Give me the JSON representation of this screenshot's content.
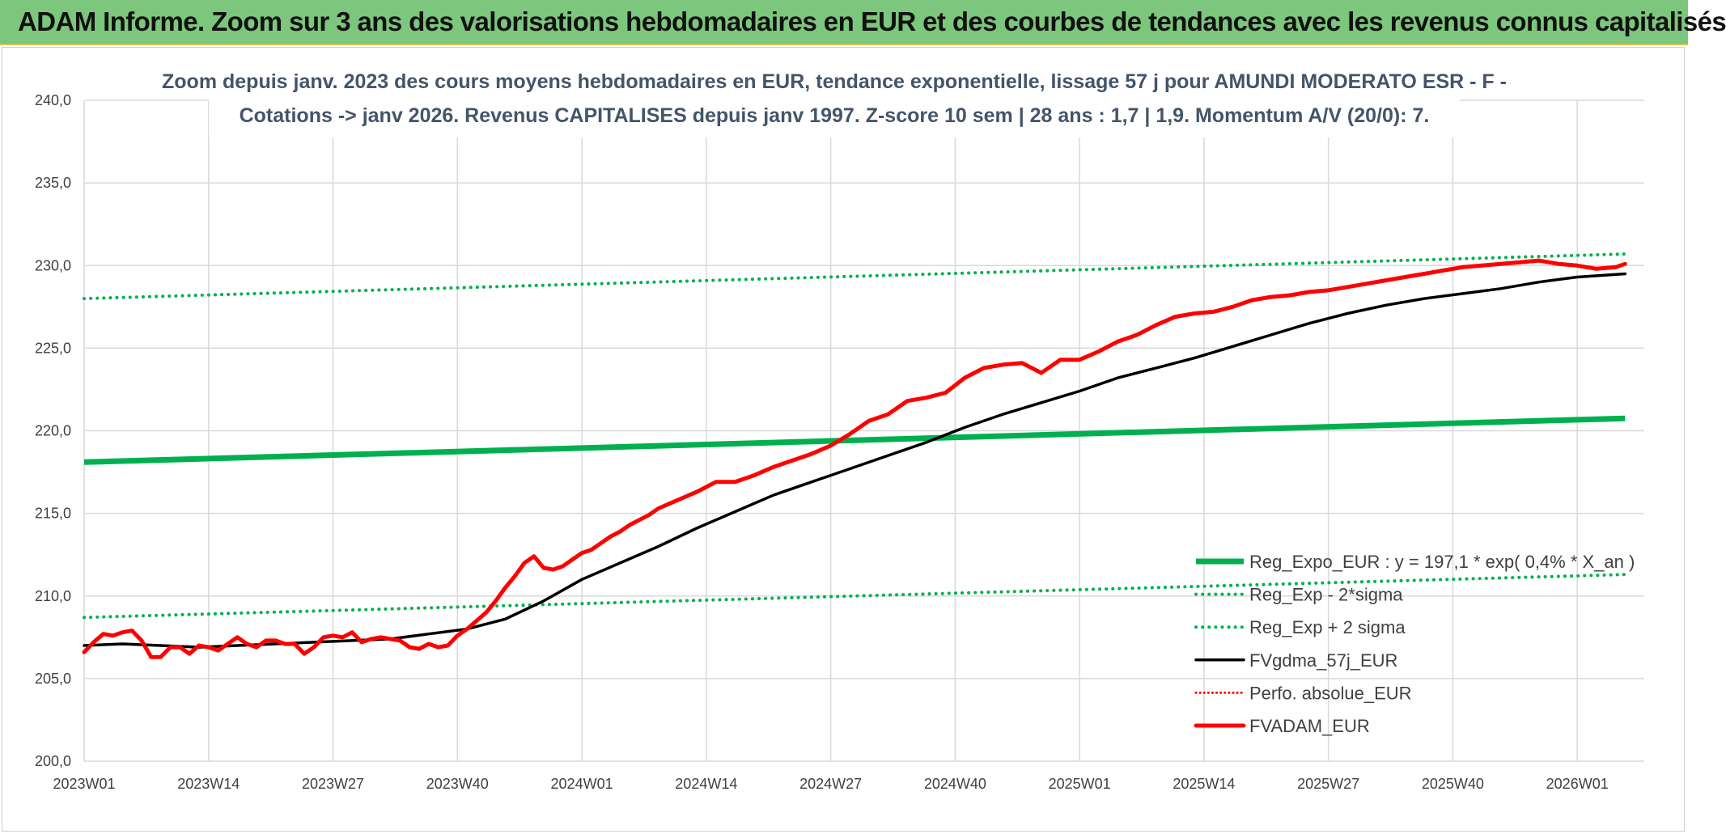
{
  "header": {
    "title": "ADAM Informe. Zoom sur 3 ans des valorisations hebdomadaires en EUR et des courbes de tendances avec les revenus connus capitalisés"
  },
  "colors": {
    "banner": "#7dc67d",
    "green": "#00b050",
    "black": "#000000",
    "red": "#ff0000",
    "grid": "#d9d9d9"
  },
  "chart_data": {
    "type": "line",
    "title_lines": [
      "Zoom depuis janv. 2023 des cours moyens hebdomadaires en EUR, tendance exponentielle, lissage 57 j pour AMUNDI MODERATO ESR - F -",
      "Cotations -> janv 2026. Revenus CAPITALISES depuis janv 1997. Z-score 10 sem | 28 ans : 1,7 | 1,9. Momentum A/V (20/0): 7."
    ],
    "x_tick_labels": [
      "2023W01",
      "2023W14",
      "2023W27",
      "2023W40",
      "2024W01",
      "2024W14",
      "2024W27",
      "2024W40",
      "2025W01",
      "2025W14",
      "2025W27",
      "2025W40",
      "2026W01"
    ],
    "y_tick_labels": [
      "240,0",
      "235,0",
      "230,0",
      "225,0",
      "220,0",
      "215,0",
      "210,0",
      "205,0",
      "200,0"
    ],
    "ylim": [
      200,
      240
    ],
    "x_unit": "week index from 2023W01",
    "xlim": [
      0,
      161
    ],
    "series": [
      {
        "name": "Reg_Expo_EUR : y = 197,1 * exp( 0,4% *  X_an )",
        "style": "solid-green",
        "x": [
          0,
          161
        ],
        "values": [
          218.1,
          220.75
        ]
      },
      {
        "name": "Reg_Exp - 2*sigma",
        "style": "dotted-green",
        "x": [
          0,
          161
        ],
        "values": [
          208.7,
          211.3
        ]
      },
      {
        "name": "Reg_Exp + 2 sigma",
        "style": "dotted-green",
        "x": [
          0,
          161
        ],
        "values": [
          228.0,
          230.7
        ]
      },
      {
        "name": "FVgdma_57j_EUR",
        "style": "solid-black",
        "x": [
          0,
          4,
          8,
          12,
          16,
          20,
          24,
          28,
          32,
          36,
          40,
          44,
          48,
          52,
          56,
          60,
          64,
          68,
          72,
          76,
          80,
          84,
          88,
          92,
          96,
          100,
          104,
          108,
          112,
          116,
          120,
          124,
          128,
          132,
          136,
          140,
          144,
          148,
          152,
          156,
          161
        ],
        "values": [
          207.0,
          207.1,
          207.0,
          206.9,
          207.0,
          207.1,
          207.2,
          207.3,
          207.4,
          207.7,
          208.0,
          208.6,
          209.7,
          211.0,
          212.0,
          213.0,
          214.1,
          215.1,
          216.1,
          216.9,
          217.7,
          218.5,
          219.3,
          220.2,
          221.0,
          221.7,
          222.4,
          223.2,
          223.8,
          224.4,
          225.1,
          225.8,
          226.5,
          227.1,
          227.6,
          228.0,
          228.3,
          228.6,
          229.0,
          229.3,
          229.5
        ]
      },
      {
        "name": "Perfo. absolue_EUR",
        "style": "dotted-red",
        "x": [],
        "values": []
      },
      {
        "name": "FVADAM_EUR",
        "style": "solid-red",
        "x": [
          0,
          1,
          2,
          3,
          4,
          5,
          6,
          7,
          8,
          9,
          10,
          11,
          12,
          13,
          14,
          15,
          16,
          17,
          18,
          19,
          20,
          21,
          22,
          23,
          24,
          25,
          26,
          27,
          28,
          29,
          30,
          31,
          32,
          33,
          34,
          35,
          36,
          37,
          38,
          39,
          40,
          41,
          42,
          43,
          44,
          45,
          46,
          47,
          48,
          49,
          50,
          51,
          52,
          53,
          54,
          55,
          56,
          57,
          58,
          59,
          60,
          62,
          64,
          66,
          68,
          70,
          72,
          74,
          76,
          78,
          80,
          82,
          84,
          86,
          88,
          90,
          92,
          94,
          96,
          98,
          100,
          102,
          104,
          106,
          108,
          110,
          112,
          114,
          116,
          118,
          120,
          121,
          122,
          124,
          126,
          128,
          130,
          132,
          134,
          136,
          138,
          140,
          142,
          144,
          146,
          148,
          150,
          152,
          154,
          156,
          158,
          160,
          161
        ],
        "values": [
          206.6,
          207.2,
          207.7,
          207.6,
          207.8,
          207.9,
          207.3,
          206.3,
          206.3,
          206.9,
          206.9,
          206.5,
          207.0,
          206.9,
          206.7,
          207.1,
          207.5,
          207.1,
          206.9,
          207.3,
          207.3,
          207.1,
          207.1,
          206.5,
          206.9,
          207.5,
          207.6,
          207.5,
          207.8,
          207.2,
          207.4,
          207.5,
          207.4,
          207.3,
          206.9,
          206.8,
          207.1,
          206.9,
          207.0,
          207.6,
          208.0,
          208.5,
          209.0,
          209.7,
          210.5,
          211.2,
          212.0,
          212.4,
          211.7,
          211.6,
          211.8,
          212.2,
          212.6,
          212.8,
          213.2,
          213.6,
          213.9,
          214.3,
          214.6,
          214.9,
          215.3,
          215.8,
          216.3,
          216.9,
          216.9,
          217.3,
          217.8,
          218.2,
          218.6,
          219.1,
          219.8,
          220.6,
          221.0,
          221.8,
          222.0,
          222.3,
          223.2,
          223.8,
          224.0,
          224.1,
          223.5,
          224.3,
          224.3,
          224.8,
          225.4,
          225.8,
          226.4,
          226.9,
          227.1,
          227.2,
          227.5,
          227.7,
          227.9,
          228.1,
          228.2,
          228.4,
          228.5,
          228.7,
          228.9,
          229.1,
          229.3,
          229.5,
          229.7,
          229.9,
          230.0,
          230.1,
          230.2,
          230.3,
          230.1,
          230.0,
          229.8,
          229.9,
          230.1
        ]
      }
    ],
    "legend_position": "bottom-right"
  }
}
